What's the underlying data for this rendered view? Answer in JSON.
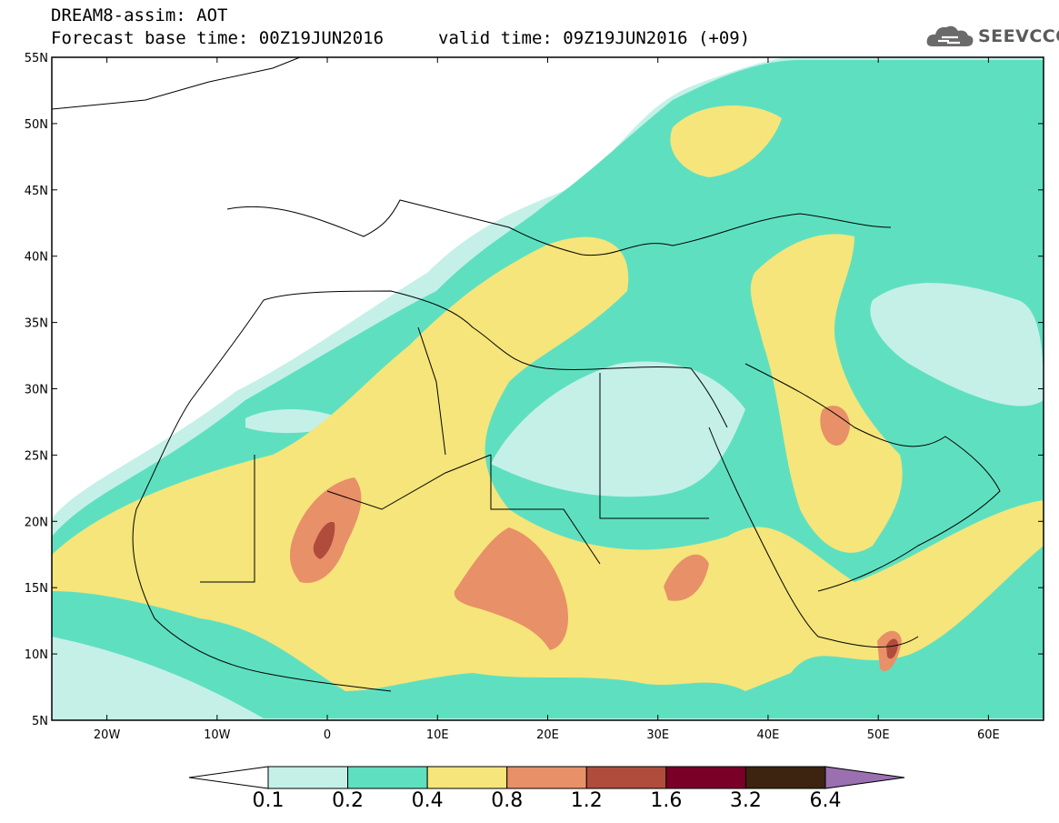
{
  "title": {
    "line1": "DREAM8-assim: AOT",
    "base": "Forecast base time: 00Z19JUN2016",
    "valid": "valid time: 09Z19JUN2016 (+09)"
  },
  "logo": {
    "text": "SEEVCCC",
    "icon": "cloud-icon"
  },
  "map": {
    "projection": "lat-lon",
    "lon_range": [
      -25,
      65
    ],
    "lat_range": [
      5,
      55
    ],
    "lon_labels": [
      "20W",
      "10W",
      "0",
      "10E",
      "20E",
      "30E",
      "40E",
      "50E",
      "60E"
    ],
    "lat_labels": [
      "55N",
      "50N",
      "45N",
      "40N",
      "35N",
      "30N",
      "25N",
      "20N",
      "15N",
      "10N",
      "5N"
    ]
  },
  "colorbar": {
    "colors": [
      "#ffffff",
      "#c4f0e8",
      "#5ee0c0",
      "#f5e57a",
      "#e89068",
      "#b04c3c",
      "#7a0028",
      "#3c2410",
      "#9a70b0"
    ],
    "labels": [
      "0.1",
      "0.2",
      "0.4",
      "0.8",
      "1.2",
      "1.6",
      "3.2",
      "6.4"
    ]
  }
}
